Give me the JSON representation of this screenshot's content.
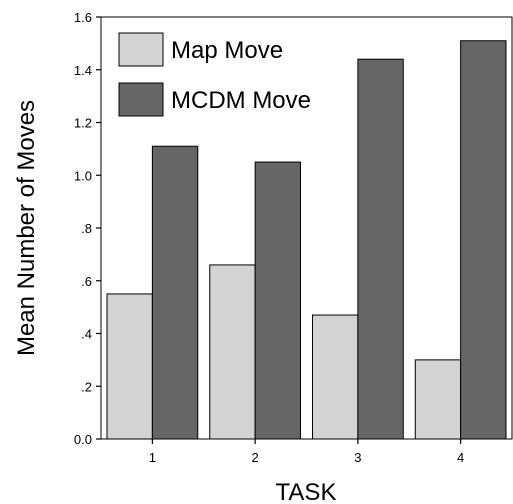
{
  "chart_data": {
    "type": "bar",
    "title": "",
    "xlabel": "TASK",
    "ylabel": "Mean Number of Moves",
    "categories": [
      "1",
      "2",
      "3",
      "4"
    ],
    "series": [
      {
        "name": "Map Move",
        "color": "#d3d3d3",
        "values": [
          0.55,
          0.66,
          0.47,
          0.3
        ]
      },
      {
        "name": "MCDM Move",
        "color": "#666666",
        "values": [
          1.11,
          1.05,
          1.44,
          1.51
        ]
      }
    ],
    "ylim": [
      0,
      1.6
    ],
    "yticks": [
      0,
      0.2,
      0.4,
      0.6,
      0.8,
      1.0,
      1.2,
      1.4,
      1.6
    ],
    "ytick_labels": [
      "0.0",
      ".2",
      ".4",
      ".6",
      ".8",
      "1.0",
      "1.2",
      "1.4",
      "1.6"
    ],
    "legend_position": "top-left",
    "grid": false
  }
}
